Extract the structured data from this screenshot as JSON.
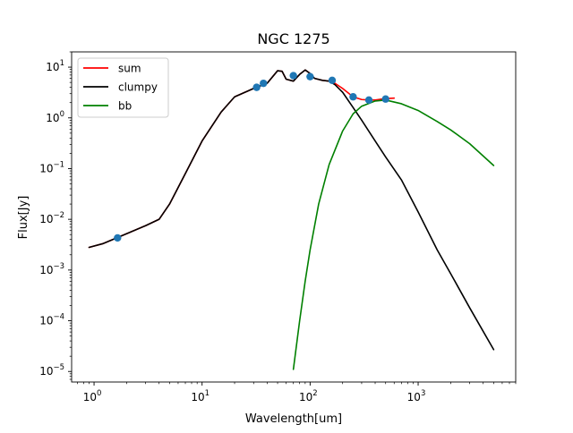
{
  "chart_data": {
    "type": "line",
    "title": "NGC 1275",
    "xlabel": "Wavelength[um]",
    "ylabel": "Flux[Jy]",
    "xscale": "log",
    "yscale": "log",
    "xlim": [
      0.62,
      8000
    ],
    "ylim": [
      6.2e-06,
      20
    ],
    "legend": "top-left",
    "grid": false,
    "x_ticks": [
      {
        "value": 1,
        "label": "10",
        "exp": "0"
      },
      {
        "value": 10,
        "label": "10",
        "exp": "1"
      },
      {
        "value": 100,
        "label": "10",
        "exp": "2"
      },
      {
        "value": 1000,
        "label": "10",
        "exp": "3"
      }
    ],
    "y_ticks": [
      {
        "value": 1e-05,
        "label": "10",
        "exp": "−5"
      },
      {
        "value": 0.0001,
        "label": "10",
        "exp": "−4"
      },
      {
        "value": 0.001,
        "label": "10",
        "exp": "−3"
      },
      {
        "value": 0.01,
        "label": "10",
        "exp": "−2"
      },
      {
        "value": 0.1,
        "label": "10",
        "exp": "−1"
      },
      {
        "value": 1,
        "label": "10",
        "exp": "0"
      },
      {
        "value": 10,
        "label": "10",
        "exp": "1"
      }
    ],
    "series": [
      {
        "name": "sum",
        "color": "#ff0000",
        "x": [
          0.9,
          1.2,
          2,
          3,
          4,
          5,
          7,
          10,
          15,
          20,
          30,
          40,
          50,
          55,
          60,
          70,
          80,
          90,
          100,
          110,
          130,
          150,
          170,
          200,
          250,
          300,
          350,
          400,
          500,
          600
        ],
        "y": [
          0.0028,
          0.0033,
          0.0052,
          0.0075,
          0.01,
          0.02,
          0.08,
          0.35,
          1.3,
          2.6,
          3.8,
          4.8,
          8.5,
          8.3,
          5.8,
          5.3,
          7.2,
          8.8,
          7.5,
          6.0,
          5.5,
          5.3,
          4.8,
          3.8,
          2.6,
          2.3,
          2.25,
          2.25,
          2.4,
          2.45
        ]
      },
      {
        "name": "clumpy",
        "color": "#000000",
        "x": [
          0.9,
          1.2,
          2,
          3,
          4,
          5,
          7,
          10,
          15,
          20,
          30,
          40,
          50,
          55,
          60,
          70,
          80,
          90,
          100,
          110,
          130,
          150,
          170,
          200,
          250,
          300,
          400,
          500,
          700,
          1000,
          1500,
          2000,
          3000,
          5000
        ],
        "y": [
          0.0028,
          0.0033,
          0.0052,
          0.0075,
          0.01,
          0.02,
          0.08,
          0.35,
          1.3,
          2.6,
          3.8,
          4.8,
          8.5,
          8.3,
          5.8,
          5.3,
          7.2,
          8.8,
          7.5,
          6.0,
          5.5,
          5.3,
          4.5,
          3.2,
          1.6,
          0.9,
          0.35,
          0.17,
          0.06,
          0.014,
          0.0025,
          0.00085,
          0.00018,
          2.7e-05
        ]
      },
      {
        "name": "bb",
        "color": "#008000",
        "x": [
          70,
          80,
          90,
          100,
          120,
          150,
          200,
          250,
          300,
          400,
          500,
          700,
          1000,
          1500,
          2000,
          3000,
          5000
        ],
        "y": [
          1.1e-05,
          0.0001,
          0.0006,
          0.0025,
          0.02,
          0.12,
          0.55,
          1.2,
          1.7,
          2.15,
          2.25,
          1.9,
          1.4,
          0.85,
          0.58,
          0.31,
          0.115
        ]
      }
    ],
    "points": {
      "color": "#1f77b4",
      "x": [
        1.65,
        32,
        37,
        70,
        100,
        160,
        250,
        350,
        500
      ],
      "y": [
        0.0043,
        4.0,
        4.8,
        6.8,
        6.5,
        5.5,
        2.6,
        2.25,
        2.35
      ]
    }
  }
}
